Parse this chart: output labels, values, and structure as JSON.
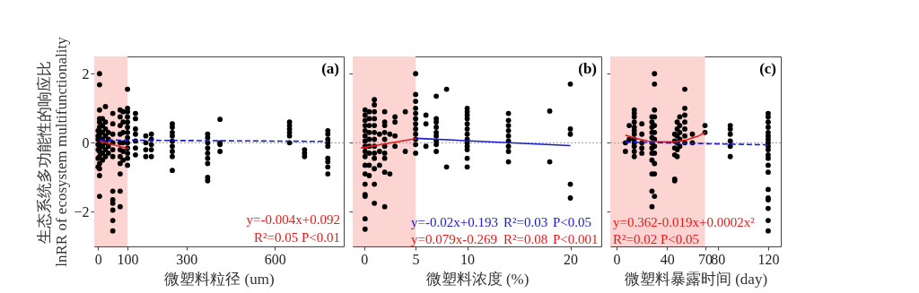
{
  "chart_data": [
    {
      "type": "scatter",
      "ylabel": "生态系统多功能性的响应比\nlnRR of ecosystem multifunctionality",
      "xlabel": "微塑料粒径 (um)",
      "xlim": [
        -13,
        834
      ],
      "xticks": [
        0,
        100,
        300,
        600
      ],
      "ylim": [
        -3,
        2.5
      ],
      "yticks": [
        -2,
        0,
        2
      ],
      "grid": false,
      "annotations": [
        "(a)",
        "y=-0.004x+0.092",
        "R²=0.05  P<0.01"
      ],
      "bands": [
        {
          "axis": "x",
          "from": -13,
          "to": 100,
          "color": "#fcd5d2"
        }
      ],
      "ref_lines": [
        {
          "axis": "y",
          "value": 0,
          "color": "#999999",
          "line_style": "dotted"
        }
      ],
      "series": [
        {
          "type": "scatter",
          "marker": "circle",
          "color": "#000000",
          "x": [
            5,
            5,
            5,
            5,
            5,
            5,
            5,
            5,
            5,
            5,
            5,
            5,
            5,
            5,
            5,
            5,
            5,
            5,
            0,
            0,
            0,
            0,
            0,
            0,
            0,
            15,
            15,
            15,
            15,
            15,
            15,
            15,
            25,
            25,
            25,
            25,
            25,
            25,
            25,
            35,
            35,
            35,
            35,
            50,
            50,
            50,
            50,
            50,
            50,
            50,
            50,
            50,
            50,
            50,
            50,
            75,
            75,
            75,
            75,
            75,
            75,
            75,
            75,
            75,
            75,
            75,
            85,
            85,
            85,
            85,
            85,
            85,
            100,
            100,
            100,
            100,
            100,
            100,
            100,
            100,
            100,
            100,
            100,
            100,
            100,
            127,
            127,
            127,
            127,
            127,
            127,
            127,
            162,
            162,
            162,
            162,
            181,
            181,
            181,
            181,
            181,
            252,
            252,
            252,
            252,
            252,
            252,
            252,
            252,
            252,
            372,
            372,
            372,
            372,
            372,
            372,
            372,
            372,
            372,
            414,
            414,
            414,
            414,
            650,
            650,
            650,
            650,
            650,
            650,
            701,
            701,
            701,
            780,
            780,
            780,
            780,
            780,
            780,
            780,
            780,
            780
          ],
          "values": [
            2.0,
            1.68,
            0.95,
            0.7,
            0.6,
            0.45,
            0.35,
            0.25,
            0.15,
            0.05,
            -0.05,
            -0.15,
            -0.25,
            -0.4,
            -0.6,
            -0.75,
            -0.95,
            -1.55,
            0.35,
            0.2,
            0.1,
            -0.05,
            -0.2,
            -0.45,
            -0.7,
            0.7,
            0.5,
            0.3,
            0.1,
            -0.1,
            -0.3,
            -0.5,
            1.05,
            0.6,
            0.4,
            0.2,
            0.0,
            -0.2,
            -0.4,
            0.3,
            0.1,
            -0.1,
            -0.3,
            0.85,
            0.55,
            0.25,
            0.0,
            -0.2,
            -0.4,
            -1.4,
            -1.65,
            -1.75,
            -1.95,
            -2.25,
            -2.55,
            0.95,
            0.75,
            0.5,
            0.25,
            0.0,
            -0.2,
            -0.4,
            -0.6,
            -0.9,
            -1.4,
            -1.85,
            0.9,
            0.6,
            0.3,
            0.0,
            -0.25,
            -0.5,
            1.55,
            1.0,
            0.9,
            0.75,
            0.6,
            0.45,
            0.3,
            0.15,
            0.0,
            -0.15,
            -0.3,
            -0.45,
            -0.65,
            0.85,
            0.7,
            0.4,
            0.25,
            0.05,
            -0.15,
            -0.35,
            0.2,
            0.0,
            -0.2,
            -0.4,
            0.25,
            0.1,
            -0.05,
            -0.2,
            -0.4,
            0.55,
            0.45,
            0.3,
            0.2,
            0.05,
            -0.1,
            -0.25,
            -0.4,
            -0.8,
            0.25,
            0.15,
            0.0,
            -0.15,
            -0.3,
            -0.45,
            -0.6,
            -1.0,
            -1.1,
            0.68,
            0.0,
            -0.05,
            -0.25,
            0.6,
            0.5,
            0.4,
            0.3,
            0.2,
            0.0,
            -0.2,
            -0.3,
            -0.4,
            0.35,
            0.25,
            0.1,
            0.0,
            -0.1,
            -0.45,
            -0.55,
            -0.7,
            -0.9
          ]
        },
        {
          "type": "line",
          "color": "#e41a1c",
          "line_style": "solid",
          "x": [
            5,
            105
          ],
          "values": [
            0.05,
            -0.17
          ]
        },
        {
          "type": "line",
          "color": "#1a1acc",
          "line_style": "dashed",
          "x": [
            5,
            780
          ],
          "values": [
            0.08,
            0.04
          ]
        }
      ]
    },
    {
      "type": "scatter",
      "xlabel": "微塑料浓度 (%)",
      "xlim": [
        -1.1,
        23
      ],
      "xticks": [
        0,
        5,
        10,
        20
      ],
      "ylim": [
        -3,
        2.5
      ],
      "yticks": [
        -2,
        0,
        2
      ],
      "tick_labels": "x",
      "grid": false,
      "annotations": [
        "(b)",
        "y=-0.02x+0.193",
        "R²=0.03",
        "P<0.05",
        "y=0.079x-0.269",
        "R²=0.08",
        "P<0.001"
      ],
      "bands": [
        {
          "axis": "x",
          "from": -1.1,
          "to": 5,
          "color": "#fcd5d2"
        }
      ],
      "ref_lines": [
        {
          "axis": "y",
          "value": 0,
          "color": "#999999",
          "line_style": "dotted"
        }
      ],
      "series": [
        {
          "type": "scatter",
          "marker": "circle",
          "color": "#000000",
          "x": [
            0.1,
            0.1,
            0.1,
            0.1,
            0.1,
            0.1,
            0.1,
            0.1,
            0.1,
            0.1,
            0.1,
            0.1,
            0.1,
            0.1,
            0.1,
            0.1,
            0.1,
            0.5,
            0.5,
            0.5,
            0.5,
            0.5,
            0.5,
            0.5,
            0.5,
            0.5,
            1,
            1,
            1,
            1,
            1,
            1,
            1,
            1,
            1,
            1,
            1,
            1,
            1,
            1.5,
            1.5,
            1.5,
            2,
            2,
            2,
            2,
            2,
            2,
            2,
            2,
            2,
            2,
            2.5,
            2.5,
            3,
            3,
            3,
            3,
            4,
            4,
            5,
            5,
            5,
            5,
            5,
            5,
            5,
            5,
            5,
            5,
            5,
            5,
            6,
            6,
            6,
            7,
            7,
            7,
            7,
            7,
            7,
            7,
            7,
            7,
            8,
            8,
            10,
            10,
            10,
            10,
            10,
            10,
            10,
            10,
            10,
            10,
            10,
            10,
            10,
            14,
            14,
            14,
            14,
            14,
            14,
            14,
            14,
            14,
            18,
            18,
            20,
            20,
            20,
            20,
            20
          ],
          "values": [
            0.95,
            0.8,
            0.65,
            0.5,
            0.35,
            0.2,
            0.05,
            -0.1,
            -0.25,
            -0.4,
            -0.65,
            -0.9,
            -1.2,
            -1.5,
            -1.55,
            -2.2,
            -2.5,
            0.9,
            0.7,
            0.5,
            0.3,
            0.1,
            -0.1,
            -0.3,
            -0.65,
            -0.95,
            1.25,
            1.1,
            0.9,
            0.7,
            0.5,
            0.3,
            0.1,
            -0.1,
            -0.3,
            -0.45,
            -0.75,
            -1.2,
            -1.75,
            0.25,
            -0.25,
            -0.65,
            0.9,
            0.6,
            0.5,
            0.3,
            0.1,
            -0.1,
            -0.3,
            -0.45,
            -0.85,
            -1.85,
            0.25,
            -0.9,
            0.75,
            0.6,
            0.2,
            -0.1,
            0.9,
            -0.25,
            2.0,
            1.4,
            1.2,
            1.0,
            0.85,
            0.7,
            0.55,
            0.4,
            0.25,
            0.1,
            -0.05,
            -0.3,
            0.8,
            0.55,
            -0.1,
            1.35,
            0.7,
            0.6,
            0.45,
            0.3,
            0.2,
            0.05,
            -0.05,
            -0.25,
            1.55,
            -0.7,
            1.0,
            0.9,
            0.8,
            0.7,
            0.55,
            0.4,
            0.25,
            0.1,
            0.0,
            -0.1,
            -0.2,
            -0.45,
            -0.7,
            0.85,
            0.65,
            0.5,
            0.35,
            0.2,
            0.05,
            -0.1,
            -0.25,
            -0.55,
            0.92,
            -0.55,
            1.7,
            0.4,
            0.25,
            -1.2,
            -1.6
          ]
        },
        {
          "type": "line",
          "color": "#e41a1c",
          "line_style": "solid",
          "x": [
            -0.3,
            5
          ],
          "values": [
            -0.15,
            0.12
          ]
        },
        {
          "type": "line",
          "color": "#1a1acc",
          "line_style": "solid",
          "x": [
            5,
            20
          ],
          "values": [
            0.13,
            -0.08
          ]
        }
      ]
    },
    {
      "type": "scatter",
      "xlabel": "微塑料暴露时间 (day)",
      "xlim": [
        -5,
        130
      ],
      "xticks": [
        0,
        40,
        70,
        80,
        120
      ],
      "ylim": [
        -3,
        2.5
      ],
      "yticks": [
        -2,
        0,
        2
      ],
      "tick_labels": "x",
      "grid": false,
      "annotations": [
        "(c)",
        "y=0.362-0.019x+0.0002x²",
        "R²=0.02  P<0.05"
      ],
      "bands": [
        {
          "axis": "x",
          "from": -5,
          "to": 70,
          "color": "#fcd5d2"
        }
      ],
      "ref_lines": [
        {
          "axis": "y",
          "value": 0,
          "color": "#999999",
          "line_style": "dotted"
        }
      ],
      "series": [
        {
          "type": "scatter",
          "marker": "circle",
          "color": "#000000",
          "x": [
            7,
            7,
            10,
            10,
            14,
            14,
            14,
            14,
            14,
            14,
            14,
            14,
            14,
            14,
            14,
            14,
            20,
            20,
            20,
            20,
            20,
            28,
            28,
            28,
            28,
            28,
            28,
            28,
            28,
            28,
            28,
            28,
            28,
            30,
            30,
            30,
            30,
            30,
            30,
            30,
            30,
            30,
            30,
            30,
            30,
            46,
            46,
            46,
            46,
            46,
            46,
            48,
            48,
            48,
            48,
            48,
            48,
            50,
            50,
            50,
            50,
            50,
            54,
            54,
            54,
            54,
            54,
            54,
            54,
            60,
            60,
            70,
            70,
            90,
            90,
            90,
            90,
            90,
            90,
            120,
            120,
            120,
            120,
            120,
            120,
            120,
            120,
            120,
            120,
            120,
            120,
            120,
            120,
            120,
            120,
            120,
            120,
            120,
            120
          ],
          "values": [
            0.0,
            -0.25,
            0.5,
            0.1,
            0.95,
            0.85,
            0.75,
            0.6,
            0.45,
            0.35,
            0.25,
            0.1,
            0.0,
            -0.1,
            -0.25,
            -0.4,
            0.55,
            0.25,
            0.0,
            -0.15,
            -0.3,
            0.75,
            0.6,
            0.45,
            0.3,
            0.15,
            0.0,
            -0.15,
            -0.3,
            -0.5,
            -0.9,
            -1.4,
            -1.85,
            2.0,
            1.7,
            0.95,
            0.75,
            0.5,
            0.3,
            0.1,
            -0.1,
            -0.3,
            -0.6,
            -0.9,
            -1.55,
            0.25,
            0.05,
            -0.15,
            -0.35,
            -1.05,
            -1.1,
            0.6,
            0.4,
            0.2,
            0.0,
            -0.2,
            -0.4,
            0.75,
            0.5,
            0.3,
            0.1,
            -0.1,
            1.55,
            1.0,
            0.8,
            0.6,
            0.4,
            0.2,
            0.0,
            0.25,
            0.0,
            0.5,
            0.3,
            0.5,
            0.4,
            0.25,
            0.05,
            -0.1,
            -0.4,
            0.85,
            0.75,
            0.6,
            0.45,
            0.3,
            0.2,
            0.1,
            0.0,
            -0.1,
            -0.2,
            -0.35,
            -0.45,
            -0.65,
            -0.85,
            -1.35,
            -1.6,
            -1.65,
            -1.9,
            -2.25,
            -2.55
          ]
        },
        {
          "type": "line",
          "color": "#e41a1c",
          "line_style": "solid",
          "x": [
            7,
            15,
            25,
            35,
            45,
            55,
            65,
            70
          ],
          "values": [
            0.22,
            0.13,
            0.05,
            0.03,
            0.03,
            0.08,
            0.2,
            0.3
          ]
        },
        {
          "type": "line",
          "color": "#1a1acc",
          "line_style": "dashed",
          "x": [
            7,
            120
          ],
          "values": [
            0.02,
            -0.06
          ]
        }
      ]
    }
  ]
}
